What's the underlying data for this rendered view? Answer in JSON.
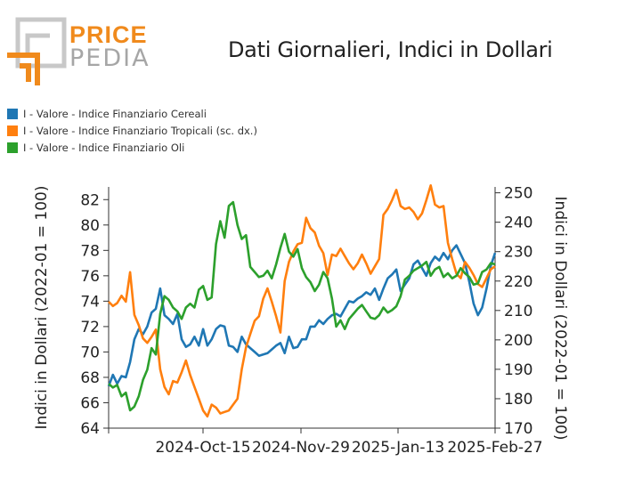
{
  "header": {
    "brand_top": "PRICE",
    "brand_bottom": "PEDIA",
    "title": "Dati Giornalieri, Indici in Dollari"
  },
  "colors": {
    "series_blue": "#1f77b4",
    "series_orange": "#ff7f0e",
    "series_green": "#2ca02c",
    "logo_orange": "#f08a1c",
    "logo_gray": "#a6a6a6"
  },
  "chart_data": {
    "type": "line",
    "title": "Dati Giornalieri, Indici in Dollari",
    "ylabel_left": "Indici in Dollari (2022-01 = 100)",
    "ylabel_right": "Indici in Dollari (2022-01 = 100)",
    "ylim_left": [
      64,
      83
    ],
    "ylim_right": [
      170,
      252
    ],
    "yticks_left": [
      "64",
      "66",
      "68",
      "70",
      "72",
      "74",
      "76",
      "78",
      "80",
      "82"
    ],
    "yticks_right": [
      "170",
      "180",
      "190",
      "200",
      "210",
      "220",
      "230",
      "240",
      "250"
    ],
    "xticks": [
      "2024-Oct-15",
      "2024-Nov-29",
      "2025-Jan-13",
      "2025-Feb-27"
    ],
    "legend_position": "top-left",
    "grid": false,
    "x": [
      "2024-08-31",
      "2024-09-02",
      "2024-09-04",
      "2024-09-06",
      "2024-09-08",
      "2024-09-10",
      "2024-09-12",
      "2024-09-14",
      "2024-09-16",
      "2024-09-18",
      "2024-09-20",
      "2024-09-22",
      "2024-09-24",
      "2024-09-26",
      "2024-09-28",
      "2024-09-30",
      "2024-10-02",
      "2024-10-04",
      "2024-10-06",
      "2024-10-08",
      "2024-10-10",
      "2024-10-12",
      "2024-10-14",
      "2024-10-16",
      "2024-10-18",
      "2024-10-20",
      "2024-10-22",
      "2024-10-24",
      "2024-10-26",
      "2024-10-28",
      "2024-10-30",
      "2024-11-01",
      "2024-11-03",
      "2024-11-05",
      "2024-11-07",
      "2024-11-09",
      "2024-11-11",
      "2024-11-13",
      "2024-11-15",
      "2024-11-17",
      "2024-11-19",
      "2024-11-21",
      "2024-11-23",
      "2024-11-25",
      "2024-11-27",
      "2024-11-29",
      "2024-12-01",
      "2024-12-03",
      "2024-12-05",
      "2024-12-07",
      "2024-12-09",
      "2024-12-11",
      "2024-12-13",
      "2024-12-15",
      "2024-12-17",
      "2024-12-19",
      "2024-12-21",
      "2024-12-23",
      "2024-12-25",
      "2024-12-27",
      "2024-12-29",
      "2024-12-31",
      "2025-01-02",
      "2025-01-04",
      "2025-01-06",
      "2025-01-08",
      "2025-01-10",
      "2025-01-12",
      "2025-01-14",
      "2025-01-16",
      "2025-01-18",
      "2025-01-20",
      "2025-01-22",
      "2025-01-24",
      "2025-01-26",
      "2025-01-28",
      "2025-01-30",
      "2025-02-01",
      "2025-02-03",
      "2025-02-05",
      "2025-02-07",
      "2025-02-09",
      "2025-02-11",
      "2025-02-13",
      "2025-02-15",
      "2025-02-17",
      "2025-02-19",
      "2025-02-21",
      "2025-02-23",
      "2025-02-25",
      "2025-02-27"
    ],
    "series": [
      {
        "name": "I - Valore - Indice Finanziario Cereali",
        "axis": "left",
        "color": "#1f77b4",
        "values": [
          67.3,
          68.2,
          67.5,
          68.1,
          68.0,
          69.2,
          71.0,
          71.8,
          71.4,
          72.0,
          73.1,
          73.4,
          75.0,
          72.9,
          72.6,
          72.2,
          73.0,
          71.0,
          70.4,
          70.6,
          71.2,
          70.5,
          71.8,
          70.5,
          71.0,
          71.8,
          72.1,
          72.0,
          70.5,
          70.4,
          70.0,
          71.2,
          70.6,
          70.3,
          70.0,
          69.7,
          69.8,
          69.9,
          70.2,
          70.5,
          70.7,
          69.9,
          71.2,
          70.3,
          70.4,
          71.0,
          71.0,
          72.0,
          72.0,
          72.5,
          72.2,
          72.6,
          72.9,
          73.0,
          72.8,
          73.4,
          74.0,
          73.9,
          74.2,
          74.4,
          74.7,
          74.5,
          75.0,
          74.1,
          75.0,
          75.8,
          76.1,
          76.5,
          74.8,
          75.3,
          75.8,
          76.9,
          77.2,
          76.6,
          76.0,
          77.0,
          77.5,
          77.2,
          77.8,
          77.3,
          78.0,
          78.4,
          77.7,
          77.0,
          75.5,
          73.8,
          72.9,
          73.5,
          75.0,
          76.8,
          77.8
        ]
      },
      {
        "name": "I - Valore - Indice Finanziario Tropicali (sc. dx.)",
        "axis": "right",
        "color": "#ff7f0e",
        "values": [
          213.0,
          211.5,
          212.5,
          215.0,
          213.0,
          223.0,
          208.5,
          205.0,
          200.5,
          199.0,
          201.0,
          203.5,
          190.0,
          184.0,
          181.5,
          186.0,
          185.5,
          189.0,
          193.0,
          188.0,
          184.0,
          180.0,
          176.0,
          174.0,
          178.0,
          177.0,
          175.0,
          175.5,
          176.0,
          178.0,
          180.0,
          190.0,
          197.5,
          202.0,
          206.5,
          208.0,
          214.0,
          217.5,
          213.0,
          208.0,
          202.5,
          220.0,
          226.5,
          230.0,
          232.5,
          233.0,
          241.5,
          238.0,
          236.5,
          232.0,
          229.5,
          222.0,
          229.0,
          228.5,
          231.0,
          228.5,
          226.0,
          224.0,
          226.0,
          229.0,
          226.0,
          222.5,
          225.0,
          227.5,
          242.5,
          244.5,
          247.5,
          251.0,
          245.5,
          244.5,
          245.0,
          243.5,
          241.0,
          243.0,
          247.5,
          252.5,
          246.0,
          245.0,
          245.5,
          233.0,
          227.5,
          222.5,
          221.0,
          226.5,
          224.5,
          222.0,
          219.0,
          218.0,
          221.0,
          224.0,
          225.0
        ]
      },
      {
        "name": "I - Valore - Indice Finanziario Oli",
        "axis": "left",
        "color": "#2ca02c",
        "values": [
          67.5,
          67.2,
          67.4,
          66.5,
          66.8,
          65.4,
          65.7,
          66.5,
          67.8,
          68.6,
          70.3,
          69.8,
          73.0,
          74.4,
          74.1,
          73.5,
          73.2,
          72.6,
          73.5,
          73.8,
          73.5,
          74.9,
          75.2,
          74.1,
          74.3,
          78.5,
          80.3,
          79.0,
          81.5,
          81.8,
          80.0,
          78.9,
          79.2,
          76.7,
          76.3,
          75.9,
          76.0,
          76.4,
          75.8,
          76.9,
          78.2,
          79.3,
          77.9,
          77.5,
          78.1,
          76.6,
          75.9,
          75.5,
          74.8,
          75.3,
          76.3,
          75.8,
          74.2,
          72.0,
          72.5,
          71.8,
          72.6,
          73.0,
          73.4,
          73.7,
          73.2,
          72.7,
          72.6,
          72.9,
          73.5,
          73.1,
          73.3,
          73.6,
          74.4,
          75.7,
          76.0,
          76.4,
          76.6,
          76.8,
          77.1,
          76.0,
          76.5,
          76.7,
          75.9,
          76.2,
          75.8,
          76.0,
          76.6,
          76.2,
          75.9,
          75.3,
          75.4,
          76.3,
          76.5,
          77.0,
          76.9
        ]
      }
    ]
  }
}
